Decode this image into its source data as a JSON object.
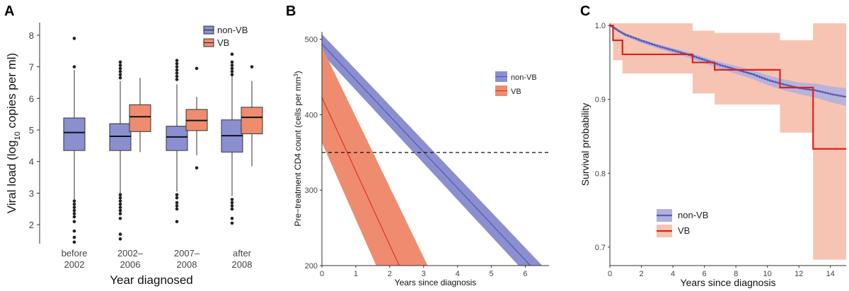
{
  "chart_data": [
    {
      "panel": "A",
      "type": "box",
      "xlabel": "Year diagnosed",
      "ylabel": "Viral load (log10 copies per ml)",
      "ylabel_parts": [
        "Viral load (log",
        "10",
        " copies per ml)"
      ],
      "ylim": [
        1.4,
        8.4
      ],
      "yticks": [
        2,
        3,
        4,
        5,
        6,
        7,
        8
      ],
      "categories": [
        {
          "label_lines": [
            "before",
            "2002"
          ]
        },
        {
          "label_lines": [
            "2002–",
            "2006"
          ]
        },
        {
          "label_lines": [
            "2007–",
            "2008"
          ]
        },
        {
          "label_lines": [
            "after",
            "2008"
          ]
        }
      ],
      "legend": {
        "position": "top-right",
        "entries": [
          "non-VB",
          "VB"
        ]
      },
      "series": [
        {
          "name": "non-VB",
          "color": "#8b8fd0",
          "boxes": [
            {
              "min": 2.2,
              "q1": 4.35,
              "median": 4.92,
              "q3": 5.38,
              "max": 6.9,
              "outliers": [
                7.9,
                7.0,
                2.75,
                2.65,
                2.55,
                2.45,
                2.35,
                2.25,
                2.1,
                1.8,
                1.6,
                1.45
              ]
            },
            {
              "min": 3.0,
              "q1": 4.35,
              "median": 4.8,
              "q3": 5.2,
              "max": 6.55,
              "outliers": [
                7.15,
                7.05,
                6.95,
                6.85,
                6.75,
                6.65,
                2.95,
                2.85,
                2.75,
                2.65,
                2.55,
                2.45,
                2.35,
                2.2,
                1.7,
                1.55
              ]
            },
            {
              "min": 3.05,
              "q1": 4.35,
              "median": 4.78,
              "q3": 5.12,
              "max": 6.45,
              "outliers": [
                7.2,
                7.1,
                7.0,
                6.9,
                6.8,
                6.7,
                6.6,
                2.95,
                2.85,
                2.7,
                2.6,
                2.5,
                2.1
              ]
            },
            {
              "min": 2.9,
              "q1": 4.3,
              "median": 4.82,
              "q3": 5.32,
              "max": 6.7,
              "outliers": [
                7.4,
                7.15,
                7.05,
                6.95,
                6.85,
                6.75,
                2.8,
                2.7,
                2.6,
                2.5,
                2.2,
                2.05
              ]
            }
          ]
        },
        {
          "name": "VB",
          "color": "#ef8c6f",
          "boxes": [
            null,
            {
              "min": 4.3,
              "q1": 4.95,
              "median": 5.42,
              "q3": 5.8,
              "max": 6.65,
              "outliers": []
            },
            {
              "min": 4.2,
              "q1": 4.98,
              "median": 5.3,
              "q3": 5.65,
              "max": 6.05,
              "outliers": [
                6.95,
                3.8
              ]
            },
            {
              "min": 3.85,
              "q1": 4.88,
              "median": 5.4,
              "q3": 5.72,
              "max": 6.55,
              "outliers": [
                7.0
              ]
            }
          ]
        }
      ]
    },
    {
      "panel": "B",
      "type": "line",
      "xlabel": "Years since diagnosis",
      "ylabel": "Pre−treatment CD4 count (cells per mm3)",
      "ylabel_parts": [
        "Pre−treatment CD4 count (cells per mm",
        "3",
        ")"
      ],
      "xlim": [
        0,
        6.7
      ],
      "ylim": [
        200,
        510
      ],
      "xticks": [
        0,
        1,
        2,
        3,
        4,
        5,
        6
      ],
      "yticks": [
        200,
        300,
        400,
        500
      ],
      "reference_line": {
        "y": 350,
        "style": "dashed"
      },
      "legend": {
        "position": "right",
        "entries": [
          "non-VB",
          "VB"
        ]
      },
      "series": [
        {
          "name": "non-VB",
          "color": "#5a5cb0",
          "band_color": "#8b8fd0",
          "line": [
            {
              "x": 0,
              "y": 494
            },
            {
              "x": 6.15,
              "y": 200
            }
          ],
          "band_upper": [
            {
              "x": 0,
              "y": 507
            },
            {
              "x": 6.5,
              "y": 200
            }
          ],
          "band_lower": [
            {
              "x": 0,
              "y": 481
            },
            {
              "x": 5.8,
              "y": 200
            }
          ]
        },
        {
          "name": "VB",
          "color": "#e03a2a",
          "band_color": "#ef8c6f",
          "line": [
            {
              "x": 0,
              "y": 423
            },
            {
              "x": 2.28,
              "y": 200
            }
          ],
          "band_upper": [
            {
              "x": 0,
              "y": 490
            },
            {
              "x": 3.12,
              "y": 200
            }
          ],
          "band_lower": [
            {
              "x": 0,
              "y": 363
            },
            {
              "x": 1.6,
              "y": 200
            }
          ]
        }
      ]
    },
    {
      "panel": "C",
      "type": "step",
      "xlabel": "Years since diagnosis",
      "ylabel": "Survival probability",
      "xlim": [
        0,
        15
      ],
      "ylim": [
        0.675,
        1.003
      ],
      "xticks": [
        0,
        2,
        4,
        6,
        8,
        10,
        12,
        14
      ],
      "yticks": [
        0.7,
        0.8,
        0.9,
        1.0
      ],
      "ytick_labels": [
        "0.7",
        "0.8",
        "0.9",
        "1.0"
      ],
      "legend": {
        "position": "bottom-left",
        "entries": [
          "non-VB",
          "VB"
        ]
      },
      "series": [
        {
          "name": "non-VB",
          "color": "#5a5cb0",
          "band_color": "#b0b1df",
          "curve": [
            {
              "x": 0,
              "y": 1.0
            },
            {
              "x": 0.5,
              "y": 0.993
            },
            {
              "x": 1,
              "y": 0.987
            },
            {
              "x": 2,
              "y": 0.979
            },
            {
              "x": 3,
              "y": 0.972
            },
            {
              "x": 4,
              "y": 0.966
            },
            {
              "x": 5,
              "y": 0.96
            },
            {
              "x": 6,
              "y": 0.953
            },
            {
              "x": 7,
              "y": 0.946
            },
            {
              "x": 8,
              "y": 0.94
            },
            {
              "x": 9,
              "y": 0.934
            },
            {
              "x": 10,
              "y": 0.926
            },
            {
              "x": 11,
              "y": 0.92
            },
            {
              "x": 12,
              "y": 0.915
            },
            {
              "x": 13,
              "y": 0.912
            },
            {
              "x": 14,
              "y": 0.907
            },
            {
              "x": 15,
              "y": 0.903
            }
          ],
          "band_halfwidth": [
            {
              "x": 0,
              "w": 0.0
            },
            {
              "x": 1,
              "w": 0.002
            },
            {
              "x": 3,
              "w": 0.003
            },
            {
              "x": 6,
              "w": 0.004
            },
            {
              "x": 9,
              "w": 0.006
            },
            {
              "x": 12,
              "w": 0.008
            },
            {
              "x": 15,
              "w": 0.012
            }
          ]
        },
        {
          "name": "VB",
          "color": "#e0201a",
          "band_color": "#f7c4b4",
          "steps": [
            {
              "x": 0,
              "y": 1.0
            },
            {
              "x": 0.2,
              "y": 0.98
            },
            {
              "x": 0.8,
              "y": 0.961
            },
            {
              "x": 5.25,
              "y": 0.95
            },
            {
              "x": 6.65,
              "y": 0.94
            },
            {
              "x": 10.8,
              "y": 0.916
            },
            {
              "x": 12.9,
              "y": 0.833
            },
            {
              "x": 15,
              "y": 0.833
            }
          ],
          "band": [
            {
              "x": 0,
              "lo": 1.0,
              "hi": 1.003
            },
            {
              "x": 0.2,
              "lo": 0.953,
              "hi": 1.003
            },
            {
              "x": 0.8,
              "lo": 0.935,
              "hi": 1.003
            },
            {
              "x": 5.25,
              "lo": 0.908,
              "hi": 0.993
            },
            {
              "x": 6.65,
              "lo": 0.893,
              "hi": 0.99
            },
            {
              "x": 10.8,
              "lo": 0.855,
              "hi": 0.98
            },
            {
              "x": 12.9,
              "lo": 0.683,
              "hi": 1.003
            },
            {
              "x": 15,
              "lo": 0.683,
              "hi": 1.003
            }
          ]
        }
      ]
    }
  ]
}
